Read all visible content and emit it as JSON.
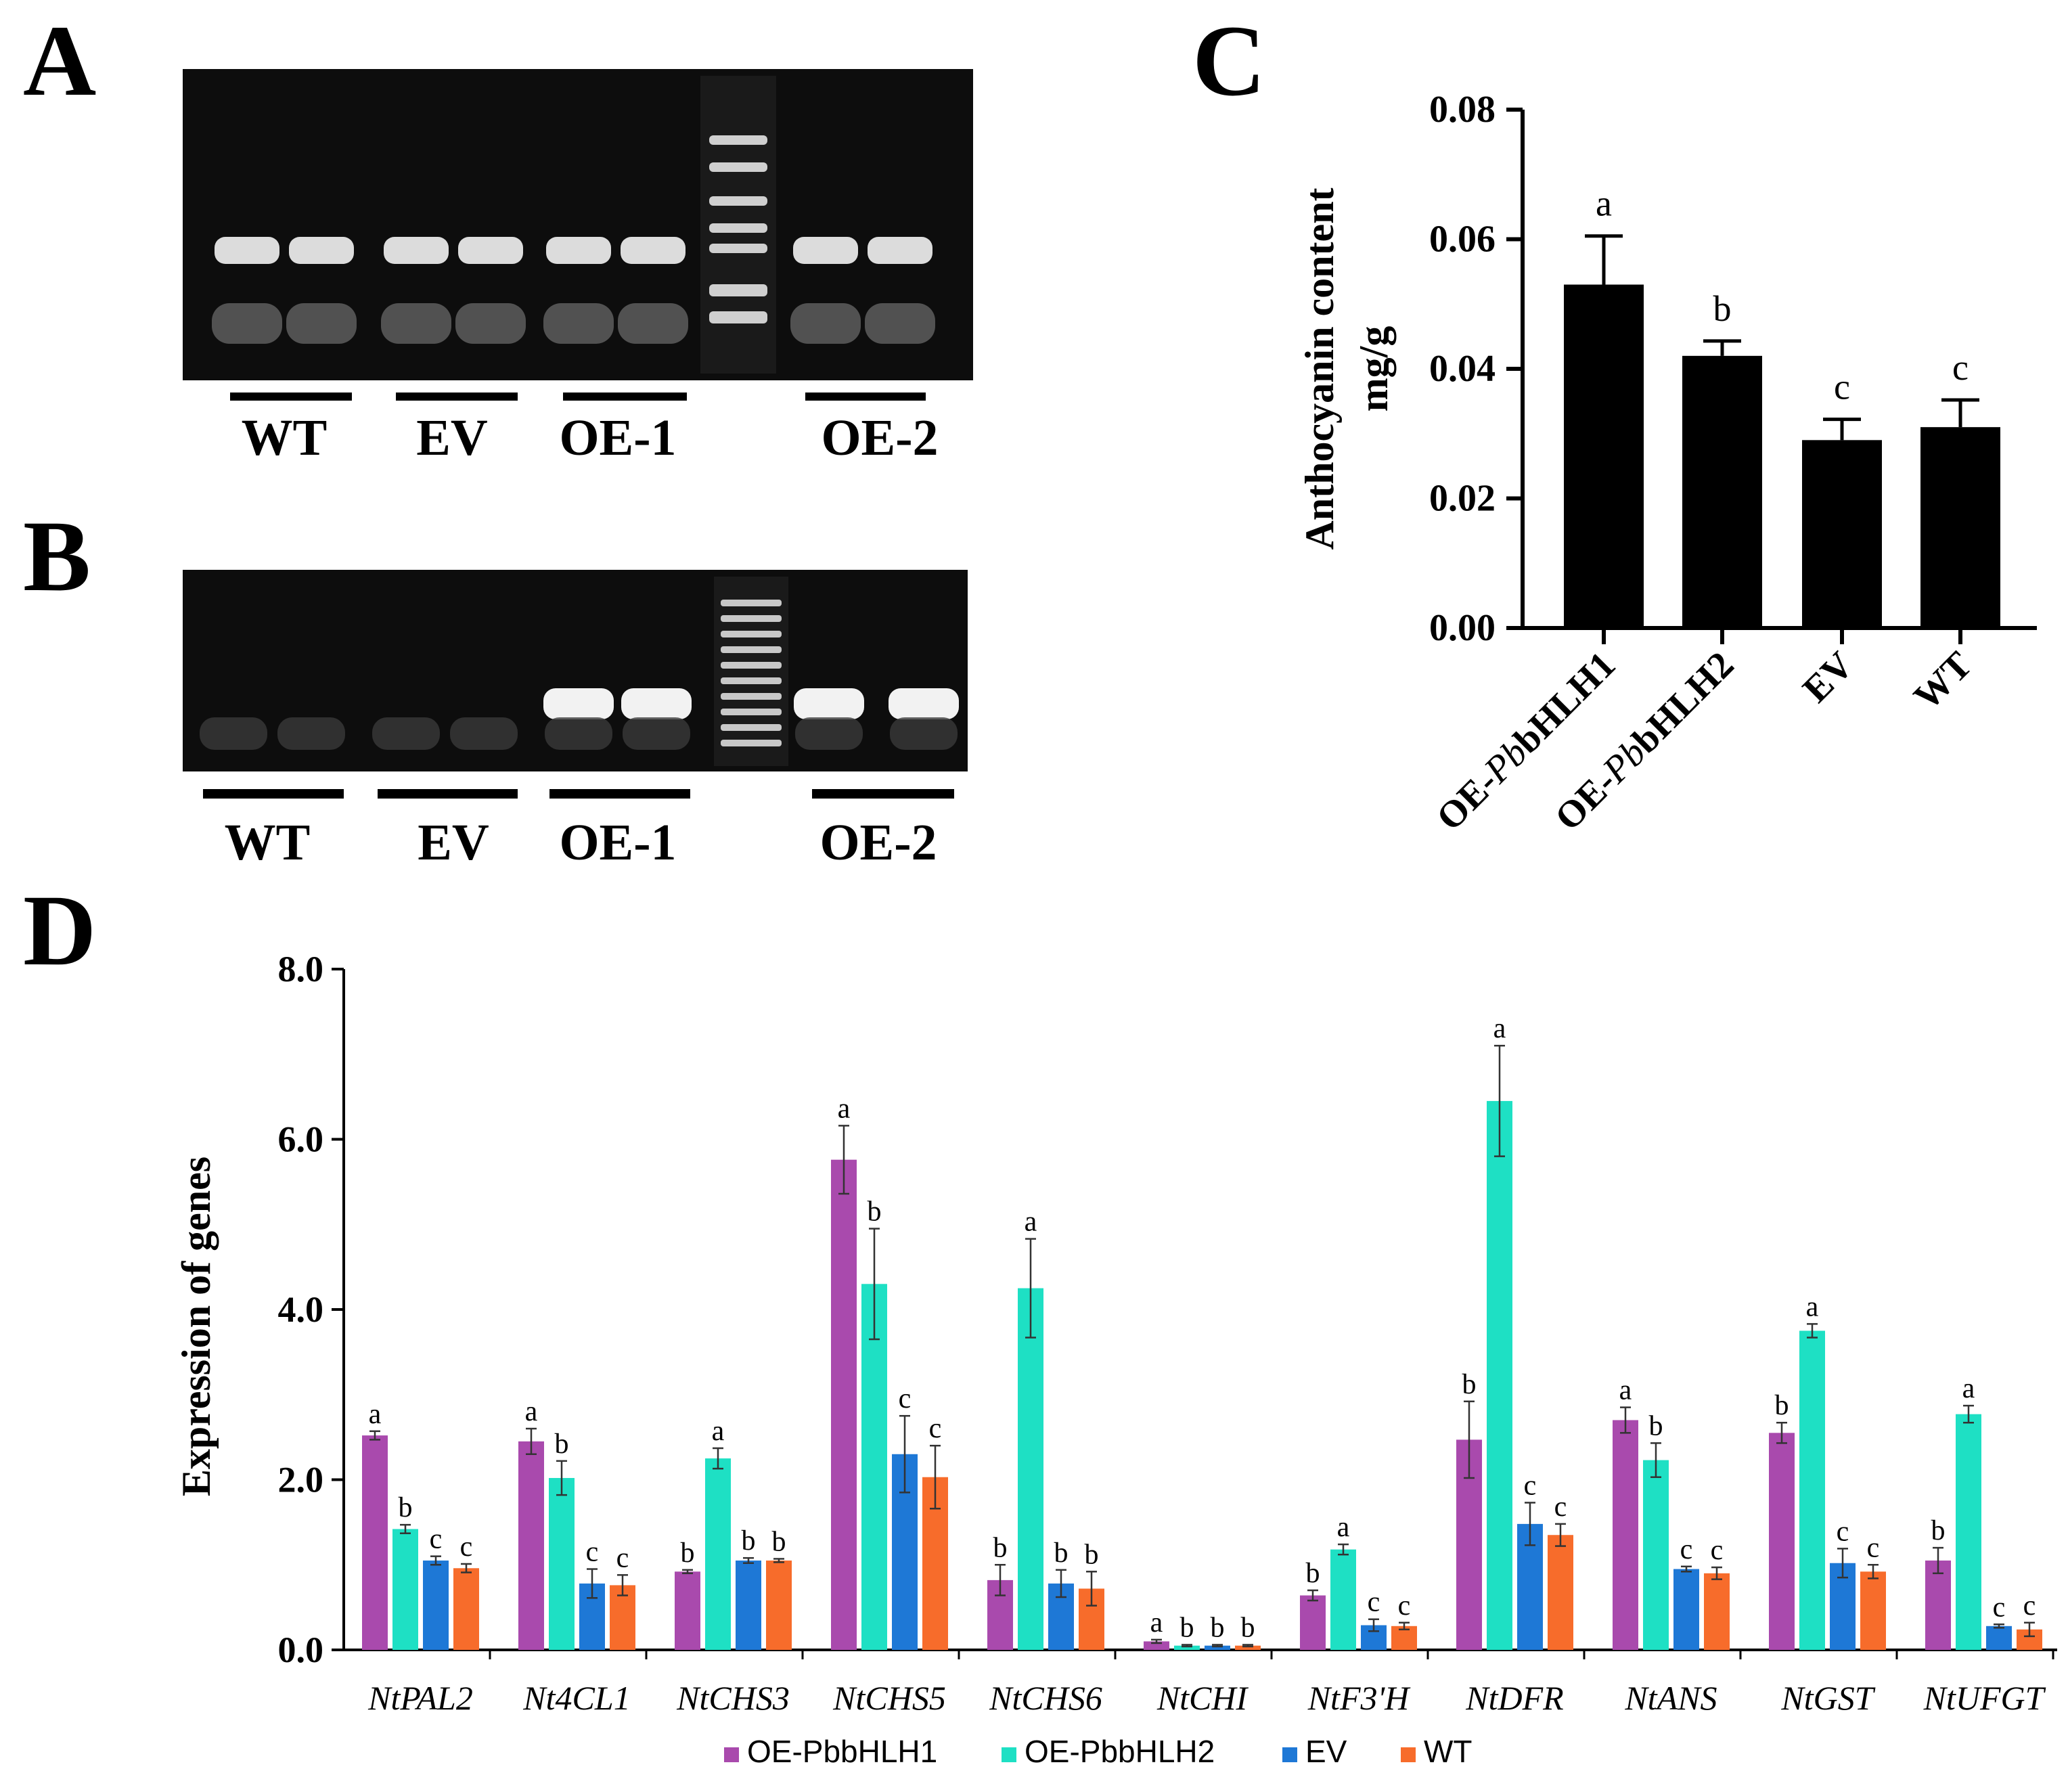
{
  "panels": {
    "a": "A",
    "b": "B",
    "c": "C",
    "d": "D"
  },
  "gels": {
    "a_lanes": [
      "WT",
      "EV",
      "OE-1",
      "OE-2"
    ],
    "b_lanes": [
      "WT",
      "EV",
      "OE-1",
      "OE-2"
    ],
    "a_band_present": [
      true,
      true,
      true,
      true
    ],
    "b_band_present": [
      false,
      false,
      true,
      true
    ]
  },
  "chart_data": [
    {
      "type": "bar",
      "ylabel_line1": "Anthocyanin  content",
      "ylabel_line2": "mg/g",
      "categories": [
        {
          "prefix": "OE-",
          "italic": "Pb",
          "suffix": "bHLH1"
        },
        {
          "prefix": "OE-",
          "italic": "Pb",
          "suffix": "bHLH2"
        },
        {
          "prefix": "EV",
          "italic": "",
          "suffix": ""
        },
        {
          "prefix": "WT",
          "italic": "",
          "suffix": ""
        }
      ],
      "values": [
        0.053,
        0.042,
        0.029,
        0.031
      ],
      "errors": [
        0.0075,
        0.0023,
        0.0032,
        0.0042
      ],
      "letters": [
        "a",
        "b",
        "c",
        "c"
      ],
      "ylim": [
        0,
        0.08
      ],
      "yticks": [
        "0.00",
        "0.02",
        "0.04",
        "0.06",
        "0.08"
      ],
      "bar_color": "#000000"
    },
    {
      "type": "bar",
      "ylabel": "Expression of genes",
      "ylim": [
        0,
        8
      ],
      "yticks": [
        "0.0",
        "2.0",
        "4.0",
        "6.0",
        "8.0"
      ],
      "categories": [
        "NtPAL2",
        "Nt4CL1",
        "NtCHS3",
        "NtCHS5",
        "NtCHS6",
        "NtCHI",
        "NtF3'H",
        "NtDFR",
        "NtANS",
        "NtGST",
        "NtUFGT"
      ],
      "series": [
        {
          "name": "OE-PbbHLH1",
          "color": "#a94aad",
          "values": [
            2.52,
            2.45,
            0.92,
            5.76,
            0.82,
            0.1,
            0.64,
            2.47,
            2.7,
            2.55,
            1.05
          ],
          "errors": [
            0.05,
            0.15,
            0.02,
            0.4,
            0.18,
            0.02,
            0.06,
            0.45,
            0.15,
            0.12,
            0.15
          ],
          "letters": [
            "a",
            "a",
            "b",
            "a",
            "b",
            "a",
            "b",
            "b",
            "a",
            "b",
            "b"
          ]
        },
        {
          "name": "OE-PbbHLH2",
          "color": "#1ee0c4",
          "values": [
            1.42,
            2.02,
            2.25,
            4.3,
            4.25,
            0.05,
            1.18,
            6.45,
            2.23,
            3.75,
            2.77
          ],
          "errors": [
            0.05,
            0.2,
            0.12,
            0.65,
            0.58,
            0.01,
            0.06,
            0.65,
            0.2,
            0.08,
            0.1
          ],
          "letters": [
            "b",
            "b",
            "a",
            "b",
            "a",
            "b",
            "a",
            "a",
            "b",
            "a",
            "a"
          ]
        },
        {
          "name": "EV",
          "color": "#1e78d6",
          "values": [
            1.05,
            0.78,
            1.05,
            2.3,
            0.78,
            0.05,
            0.29,
            1.48,
            0.95,
            1.02,
            0.28
          ],
          "errors": [
            0.05,
            0.17,
            0.03,
            0.45,
            0.16,
            0.01,
            0.07,
            0.25,
            0.03,
            0.17,
            0.02
          ],
          "letters": [
            "c",
            "c",
            "b",
            "c",
            "b",
            "b",
            "c",
            "c",
            "c",
            "c",
            "c"
          ]
        },
        {
          "name": "WT",
          "color": "#f76c2b",
          "values": [
            0.96,
            0.76,
            1.05,
            2.03,
            0.72,
            0.05,
            0.28,
            1.35,
            0.9,
            0.92,
            0.24
          ],
          "errors": [
            0.05,
            0.12,
            0.02,
            0.37,
            0.2,
            0.01,
            0.04,
            0.13,
            0.07,
            0.08,
            0.08
          ],
          "letters": [
            "c",
            "c",
            "b",
            "c",
            "b",
            "b",
            "c",
            "c",
            "c",
            "c",
            "c"
          ]
        }
      ],
      "legend_position": "bottom"
    }
  ]
}
